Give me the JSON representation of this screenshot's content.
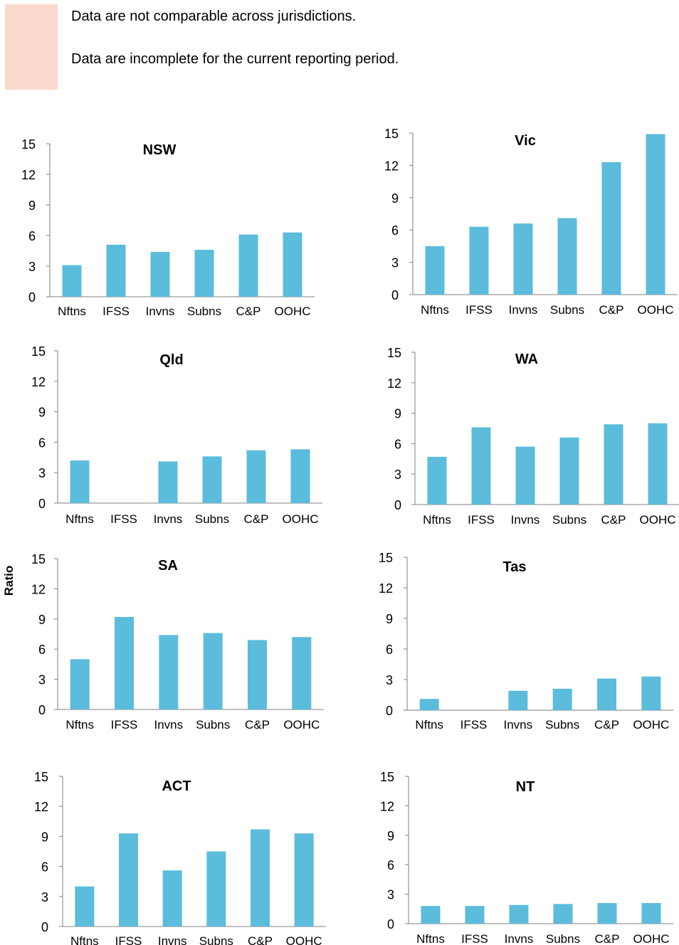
{
  "legend": {
    "items": [
      {
        "text": "Data are not comparable across jurisdictions.",
        "color": "#fad9cc"
      },
      {
        "text": "Data are incomplete for the current reporting period.",
        "color": "#fad9cc"
      }
    ]
  },
  "y_axis_label": "Ratio",
  "bar_color": "#5bbcdc",
  "chart_data": [
    {
      "type": "bar",
      "title": "NSW",
      "categories": [
        "Nftns",
        "IFSS",
        "Invns",
        "Subns",
        "C&P",
        "OOHC"
      ],
      "values": [
        3.1,
        5.1,
        4.4,
        4.6,
        6.1,
        6.3
      ],
      "ylim": [
        0,
        15
      ],
      "yticks": [
        0,
        3,
        6,
        9,
        12,
        15
      ],
      "grid": false
    },
    {
      "type": "bar",
      "title": "Vic",
      "categories": [
        "Nftns",
        "IFSS",
        "Invns",
        "Subns",
        "C&P",
        "OOHC"
      ],
      "values": [
        4.5,
        6.3,
        6.6,
        7.1,
        12.3,
        14.9
      ],
      "ylim": [
        0,
        15
      ],
      "yticks": [
        0,
        3,
        6,
        9,
        12,
        15
      ],
      "grid": false
    },
    {
      "type": "bar",
      "title": "Qld",
      "categories": [
        "Nftns",
        "IFSS",
        "Invns",
        "Subns",
        "C&P",
        "OOHC"
      ],
      "values": [
        4.2,
        null,
        4.1,
        4.6,
        5.2,
        5.3
      ],
      "ylim": [
        0,
        15
      ],
      "yticks": [
        0,
        3,
        6,
        9,
        12,
        15
      ],
      "grid": false
    },
    {
      "type": "bar",
      "title": "WA",
      "categories": [
        "Nftns",
        "IFSS",
        "Invns",
        "Subns",
        "C&P",
        "OOHC"
      ],
      "values": [
        4.7,
        7.6,
        5.7,
        6.6,
        7.9,
        8.0
      ],
      "ylim": [
        0,
        15
      ],
      "yticks": [
        0,
        3,
        6,
        9,
        12,
        15
      ],
      "grid": false
    },
    {
      "type": "bar",
      "title": "SA",
      "categories": [
        "Nftns",
        "IFSS",
        "Invns",
        "Subns",
        "C&P",
        "OOHC"
      ],
      "values": [
        5.0,
        9.2,
        7.4,
        7.6,
        6.9,
        7.2
      ],
      "ylim": [
        0,
        15
      ],
      "yticks": [
        0,
        3,
        6,
        9,
        12,
        15
      ],
      "grid": false
    },
    {
      "type": "bar",
      "title": "Tas",
      "categories": [
        "Nftns",
        "IFSS",
        "Invns",
        "Subns",
        "C&P",
        "OOHC"
      ],
      "values": [
        1.1,
        null,
        1.9,
        2.1,
        3.1,
        3.3
      ],
      "ylim": [
        0,
        15
      ],
      "yticks": [
        0,
        3,
        6,
        9,
        12,
        15
      ],
      "grid": false
    },
    {
      "type": "bar",
      "title": "ACT",
      "categories": [
        "Nftns",
        "IFSS",
        "Invns",
        "Subns",
        "C&P",
        "OOHC"
      ],
      "values": [
        4.0,
        9.3,
        5.6,
        7.5,
        9.7,
        9.3
      ],
      "ylim": [
        0,
        15
      ],
      "yticks": [
        0,
        3,
        6,
        9,
        12,
        15
      ],
      "grid": false
    },
    {
      "type": "bar",
      "title": "NT",
      "categories": [
        "Nftns",
        "IFSS",
        "Invns",
        "Subns",
        "C&P",
        "OOHC"
      ],
      "values": [
        1.8,
        1.8,
        1.9,
        2.0,
        2.1,
        2.1
      ],
      "ylim": [
        0,
        15
      ],
      "yticks": [
        0,
        3,
        6,
        9,
        12,
        15
      ],
      "grid": false
    }
  ]
}
